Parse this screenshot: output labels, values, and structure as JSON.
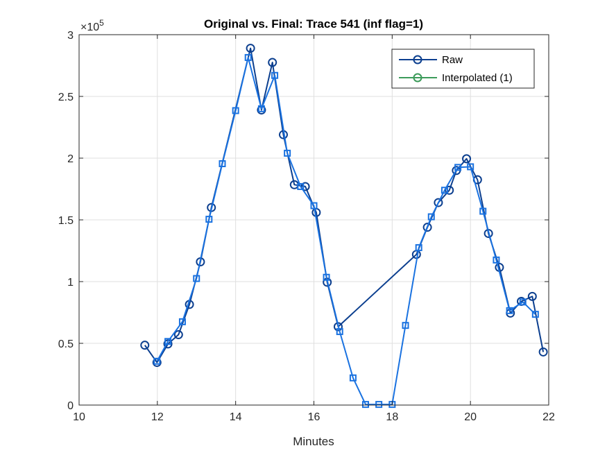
{
  "chart_data": {
    "type": "line",
    "title": "Original vs. Final: Trace 541 (inf flag=1)",
    "xlabel": "Minutes",
    "ylabel": "",
    "xlim": [
      10,
      22
    ],
    "ylim": [
      0,
      300000
    ],
    "xticks": [
      10,
      12,
      14,
      16,
      18,
      20,
      22
    ],
    "yticks": [
      0,
      50000,
      100000,
      150000,
      200000,
      250000,
      300000
    ],
    "ytick_labels": [
      "0",
      "0.5",
      "1",
      "1.5",
      "2",
      "2.5",
      "3"
    ],
    "y_exponent_label": "×10",
    "y_exponent_power": "5",
    "grid": true,
    "legend_position": "top-right",
    "series": [
      {
        "name": "Raw",
        "color": "#0c3f8f",
        "marker": "circle",
        "x": [
          11.68,
          11.99,
          12.27,
          12.54,
          12.82,
          13.1,
          13.38,
          14.38,
          14.66,
          14.94,
          15.22,
          15.5,
          15.78,
          16.06,
          16.34,
          16.62,
          18.62,
          18.9,
          19.18,
          19.46,
          19.64,
          19.9,
          20.18,
          20.46,
          20.74,
          21.02,
          21.3,
          21.58,
          21.86
        ],
        "y": [
          48500,
          34500,
          49500,
          57000,
          81500,
          116000,
          160000,
          289000,
          239000,
          277500,
          219000,
          178500,
          177000,
          156000,
          99500,
          63500,
          122000,
          144000,
          164000,
          174000,
          190000,
          199500,
          182500,
          139000,
          111500,
          74500,
          84000,
          88000,
          43000
        ]
      },
      {
        "name": "Interpolated (1)",
        "color": "#3c9b5a",
        "marker": "circle",
        "x": [],
        "y": []
      },
      {
        "name": "",
        "color": "#1a72e0",
        "marker": "square",
        "x": [
          11.99,
          12.27,
          12.64,
          13.0,
          13.32,
          13.66,
          14.0,
          14.32,
          14.66,
          15.0,
          15.32,
          15.66,
          16.0,
          16.32,
          16.66,
          17.0,
          17.32,
          17.66,
          18.0,
          18.34,
          18.68,
          19.0,
          19.34,
          19.68,
          20.0,
          20.32,
          20.66,
          21.0,
          21.34,
          21.66
        ],
        "y": [
          35500,
          51500,
          67500,
          102500,
          150500,
          195500,
          238500,
          281500,
          240000,
          267000,
          204000,
          177000,
          161500,
          103500,
          59500,
          22000,
          500,
          500,
          500,
          64500,
          127500,
          152500,
          174000,
          192500,
          193000,
          157000,
          117500,
          76500,
          83500,
          73500
        ]
      }
    ]
  }
}
